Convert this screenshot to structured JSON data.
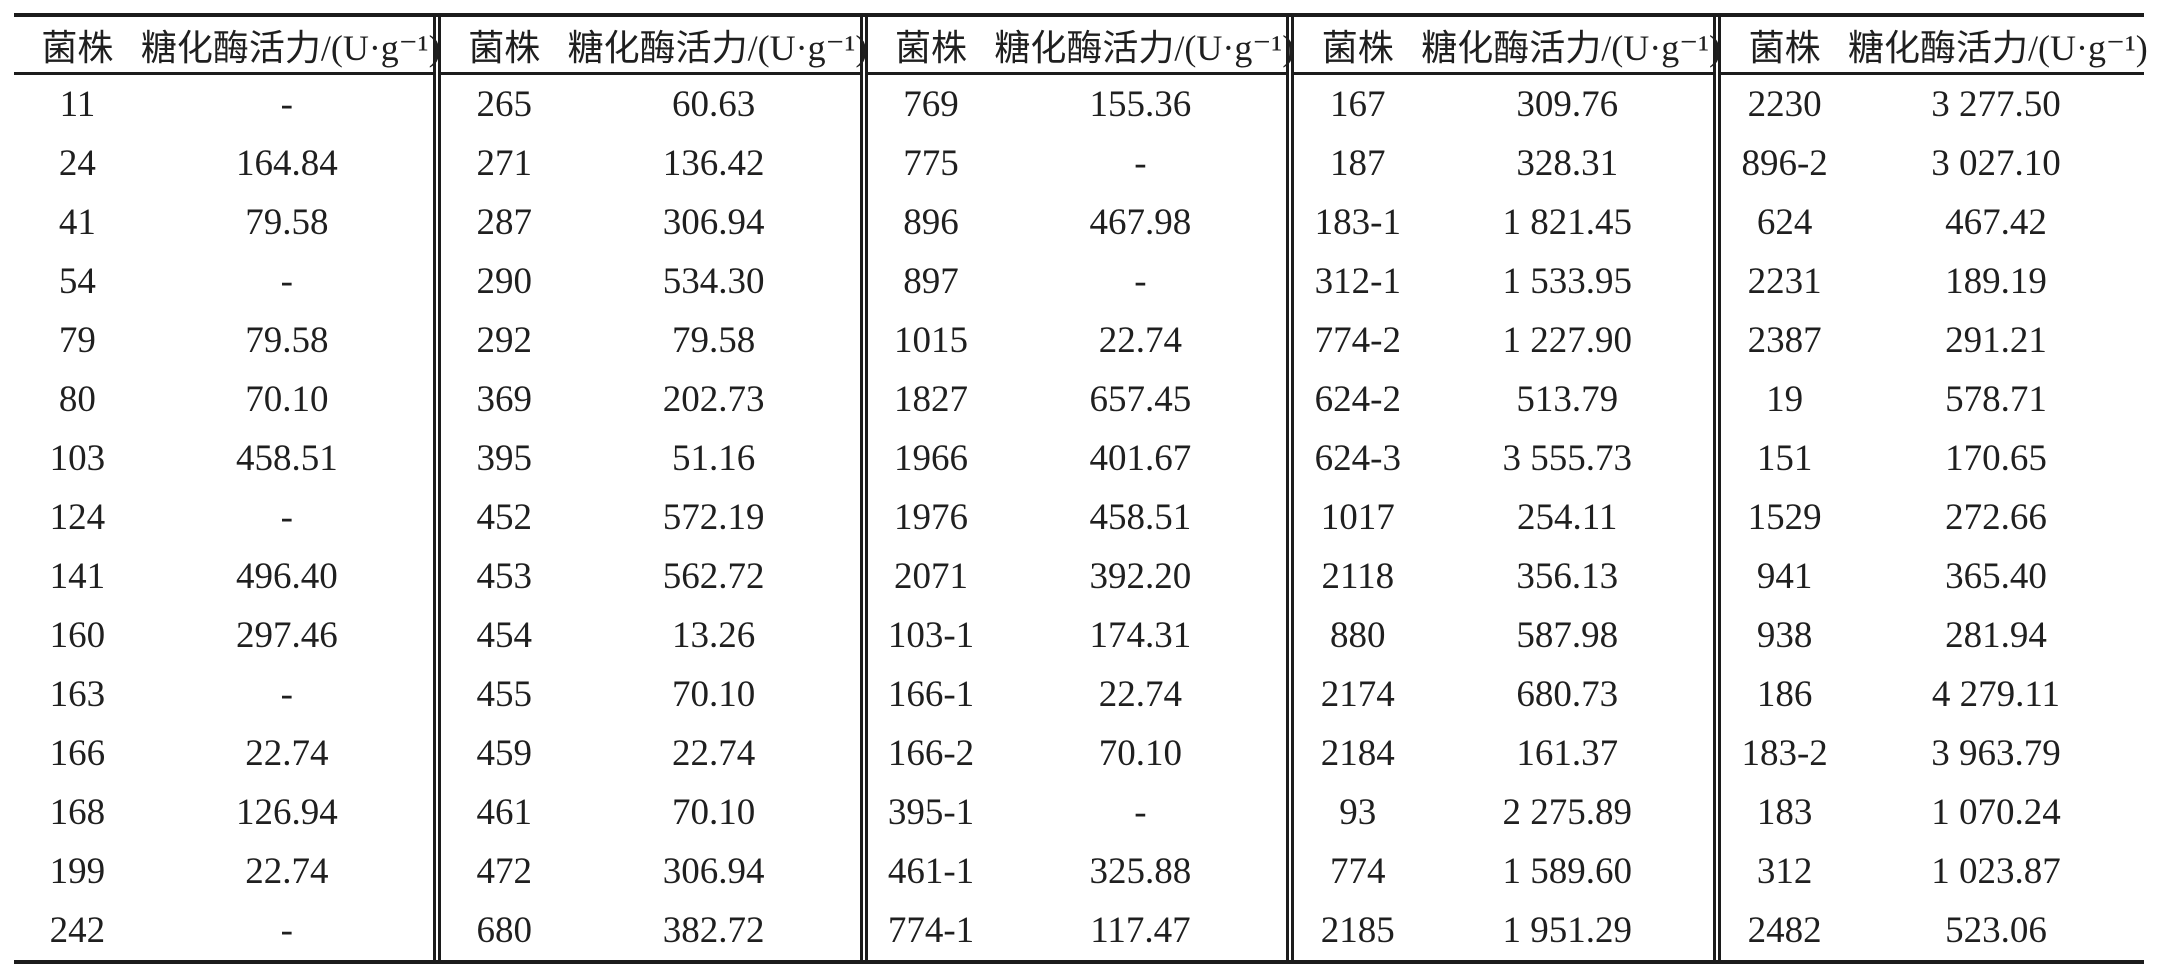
{
  "table": {
    "headers": {
      "strain": "菌株",
      "activity": "糖化酶活力/(U·g⁻¹)"
    },
    "groups": [
      {
        "rows": [
          {
            "strain": "11",
            "activity": "-"
          },
          {
            "strain": "24",
            "activity": "164.84"
          },
          {
            "strain": "41",
            "activity": "79.58"
          },
          {
            "strain": "54",
            "activity": "-"
          },
          {
            "strain": "79",
            "activity": "79.58"
          },
          {
            "strain": "80",
            "activity": "70.10"
          },
          {
            "strain": "103",
            "activity": "458.51"
          },
          {
            "strain": "124",
            "activity": "-"
          },
          {
            "strain": "141",
            "activity": "496.40"
          },
          {
            "strain": "160",
            "activity": "297.46"
          },
          {
            "strain": "163",
            "activity": "-"
          },
          {
            "strain": "166",
            "activity": "22.74"
          },
          {
            "strain": "168",
            "activity": "126.94"
          },
          {
            "strain": "199",
            "activity": "22.74"
          },
          {
            "strain": "242",
            "activity": "-"
          }
        ]
      },
      {
        "rows": [
          {
            "strain": "265",
            "activity": "60.63"
          },
          {
            "strain": "271",
            "activity": "136.42"
          },
          {
            "strain": "287",
            "activity": "306.94"
          },
          {
            "strain": "290",
            "activity": "534.30"
          },
          {
            "strain": "292",
            "activity": "79.58"
          },
          {
            "strain": "369",
            "activity": "202.73"
          },
          {
            "strain": "395",
            "activity": "51.16"
          },
          {
            "strain": "452",
            "activity": "572.19"
          },
          {
            "strain": "453",
            "activity": "562.72"
          },
          {
            "strain": "454",
            "activity": "13.26"
          },
          {
            "strain": "455",
            "activity": "70.10"
          },
          {
            "strain": "459",
            "activity": "22.74"
          },
          {
            "strain": "461",
            "activity": "70.10"
          },
          {
            "strain": "472",
            "activity": "306.94"
          },
          {
            "strain": "680",
            "activity": "382.72"
          }
        ]
      },
      {
        "rows": [
          {
            "strain": "769",
            "activity": "155.36"
          },
          {
            "strain": "775",
            "activity": "-"
          },
          {
            "strain": "896",
            "activity": "467.98"
          },
          {
            "strain": "897",
            "activity": "-"
          },
          {
            "strain": "1015",
            "activity": "22.74"
          },
          {
            "strain": "1827",
            "activity": "657.45"
          },
          {
            "strain": "1966",
            "activity": "401.67"
          },
          {
            "strain": "1976",
            "activity": "458.51"
          },
          {
            "strain": "2071",
            "activity": "392.20"
          },
          {
            "strain": "103-1",
            "activity": "174.31"
          },
          {
            "strain": "166-1",
            "activity": "22.74"
          },
          {
            "strain": "166-2",
            "activity": "70.10"
          },
          {
            "strain": "395-1",
            "activity": "-"
          },
          {
            "strain": "461-1",
            "activity": "325.88"
          },
          {
            "strain": "774-1",
            "activity": "117.47"
          }
        ]
      },
      {
        "rows": [
          {
            "strain": "167",
            "activity": "309.76"
          },
          {
            "strain": "187",
            "activity": "328.31"
          },
          {
            "strain": "183-1",
            "activity": "1 821.45"
          },
          {
            "strain": "312-1",
            "activity": "1 533.95"
          },
          {
            "strain": "774-2",
            "activity": "1 227.90"
          },
          {
            "strain": "624-2",
            "activity": "513.79"
          },
          {
            "strain": "624-3",
            "activity": "3 555.73"
          },
          {
            "strain": "1017",
            "activity": "254.11"
          },
          {
            "strain": "2118",
            "activity": "356.13"
          },
          {
            "strain": "880",
            "activity": "587.98"
          },
          {
            "strain": "2174",
            "activity": "680.73"
          },
          {
            "strain": "2184",
            "activity": "161.37"
          },
          {
            "strain": "93",
            "activity": "2 275.89"
          },
          {
            "strain": "774",
            "activity": "1 589.60"
          },
          {
            "strain": "2185",
            "activity": "1 951.29"
          }
        ]
      },
      {
        "rows": [
          {
            "strain": "2230",
            "activity": "3 277.50"
          },
          {
            "strain": "896-2",
            "activity": "3 027.10"
          },
          {
            "strain": "624",
            "activity": "467.42"
          },
          {
            "strain": "2231",
            "activity": "189.19"
          },
          {
            "strain": "2387",
            "activity": "291.21"
          },
          {
            "strain": "19",
            "activity": "578.71"
          },
          {
            "strain": "151",
            "activity": "170.65"
          },
          {
            "strain": "1529",
            "activity": "272.66"
          },
          {
            "strain": "941",
            "activity": "365.40"
          },
          {
            "strain": "938",
            "activity": "281.94"
          },
          {
            "strain": "186",
            "activity": "4 279.11"
          },
          {
            "strain": "183-2",
            "activity": "3 963.79"
          },
          {
            "strain": "183",
            "activity": "1 070.24"
          },
          {
            "strain": "312",
            "activity": "1 023.87"
          },
          {
            "strain": "2482",
            "activity": "523.06"
          }
        ]
      }
    ]
  }
}
